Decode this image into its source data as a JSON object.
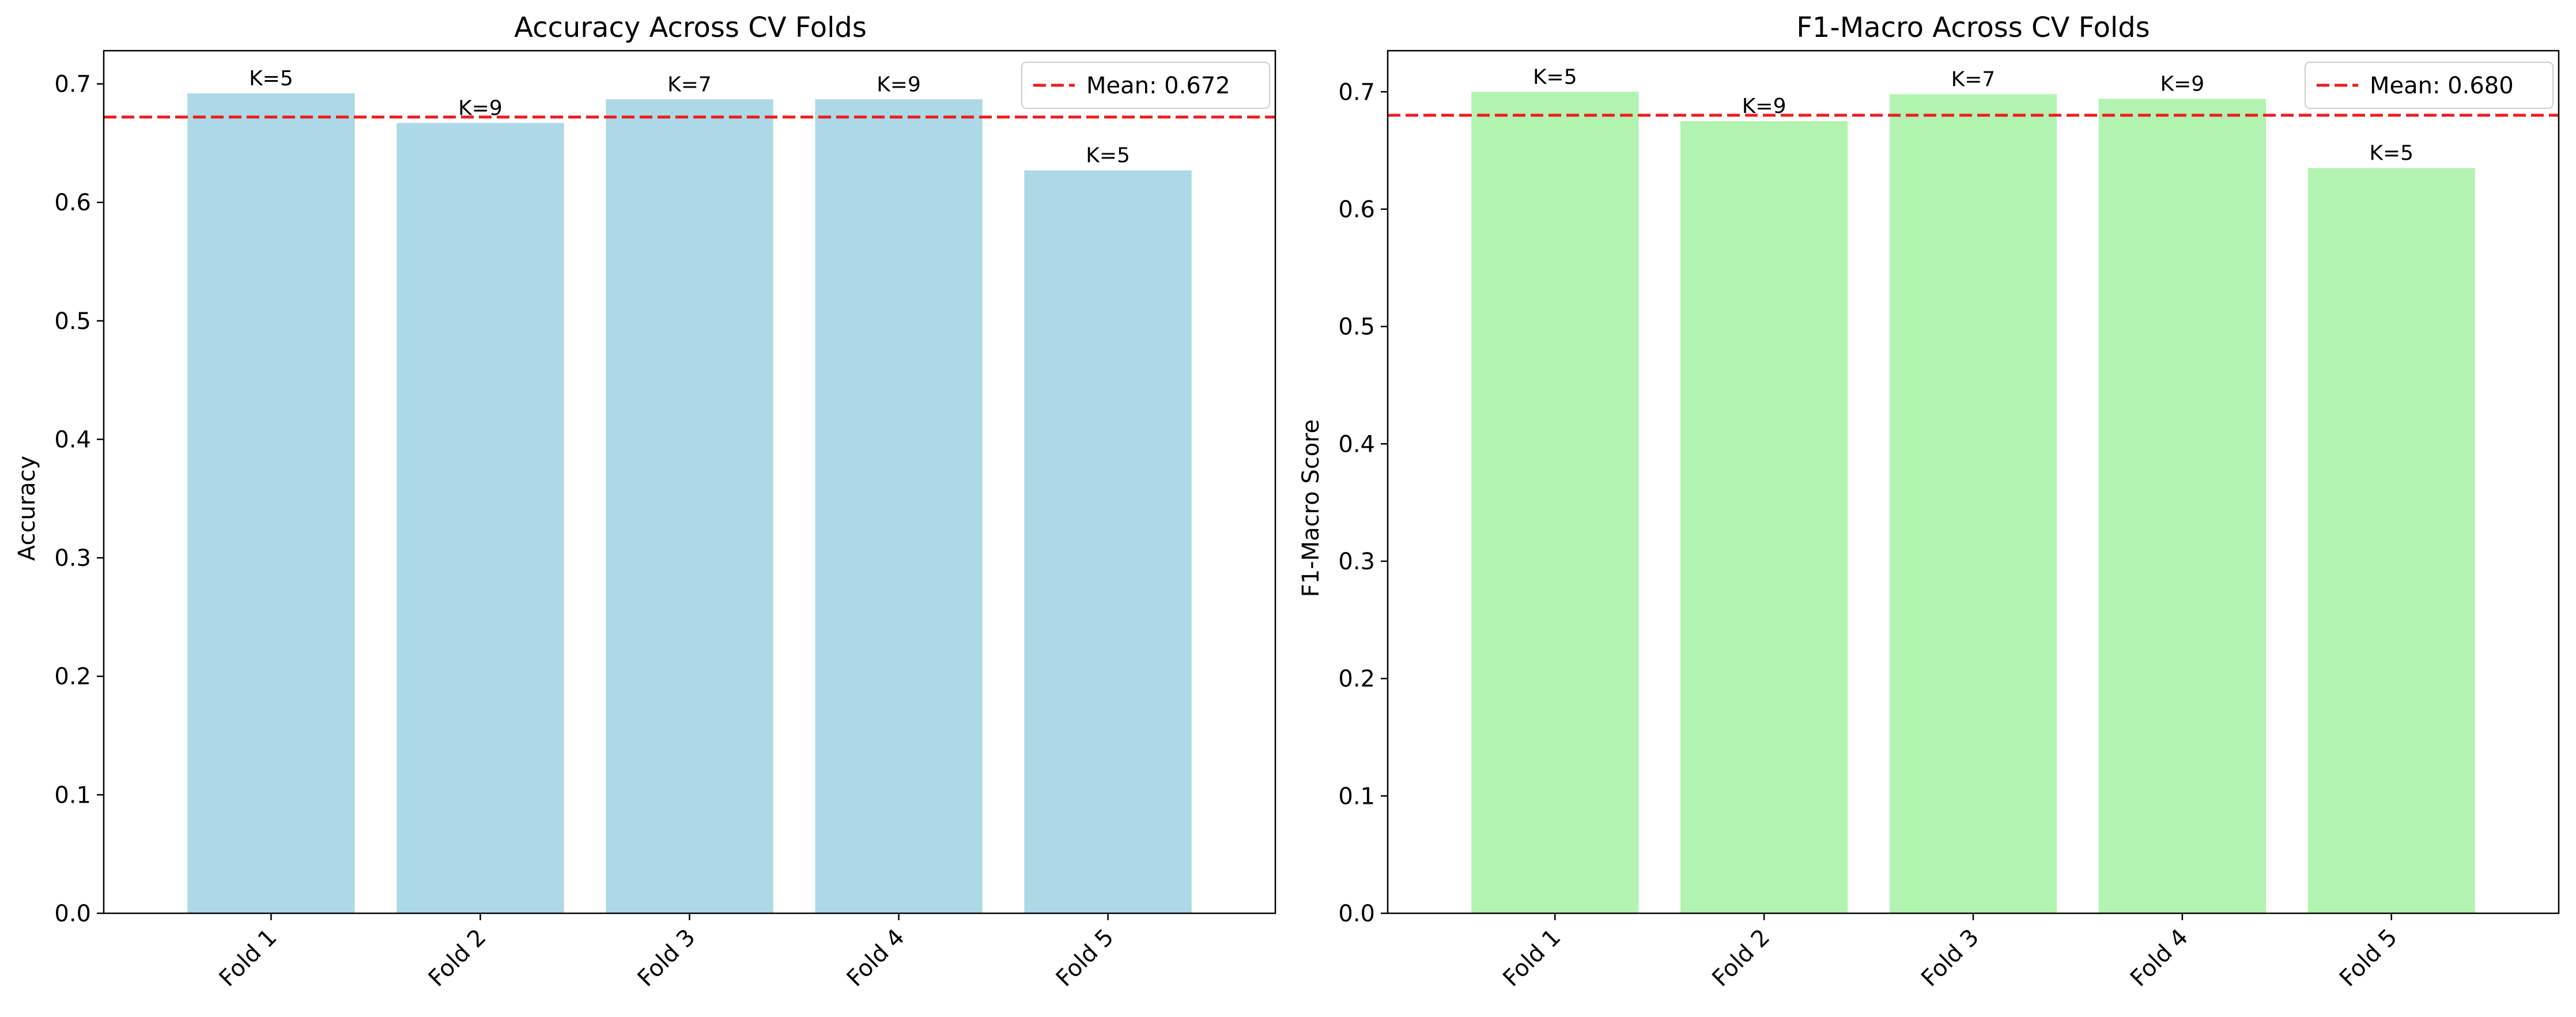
{
  "colors": {
    "accuracy_bars": "#add8e6",
    "f1_bars": "#b3f3b1",
    "mean_line": "#ee1c1c"
  },
  "chart_data": [
    {
      "type": "bar",
      "title": "Accuracy Across CV Folds",
      "xlabel": "",
      "ylabel": "Accuracy",
      "categories": [
        "Fold 1",
        "Fold 2",
        "Fold 3",
        "Fold 4",
        "Fold 5"
      ],
      "values": [
        0.692,
        0.667,
        0.687,
        0.687,
        0.627
      ],
      "bar_labels": [
        "K=5",
        "K=9",
        "K=7",
        "K=9",
        "K=5"
      ],
      "mean": 0.672,
      "mean_label": "Mean: 0.672",
      "ylim": [
        0,
        0.728
      ],
      "yticks": [
        0.0,
        0.1,
        0.2,
        0.3,
        0.4,
        0.5,
        0.6,
        0.7
      ],
      "ytick_labels": [
        "0.0",
        "0.1",
        "0.2",
        "0.3",
        "0.4",
        "0.5",
        "0.6",
        "0.7"
      ],
      "bar_color": "#add8e6",
      "grid": false,
      "legend_position": "top-right"
    },
    {
      "type": "bar",
      "title": "F1-Macro Across CV Folds",
      "xlabel": "",
      "ylabel": "F1-Macro Score",
      "categories": [
        "Fold 1",
        "Fold 2",
        "Fold 3",
        "Fold 4",
        "Fold 5"
      ],
      "values": [
        0.7,
        0.675,
        0.698,
        0.694,
        0.635
      ],
      "bar_labels": [
        "K=5",
        "K=9",
        "K=7",
        "K=9",
        "K=5"
      ],
      "mean": 0.68,
      "mean_label": "Mean: 0.680",
      "ylim": [
        0,
        0.735
      ],
      "yticks": [
        0.0,
        0.1,
        0.2,
        0.3,
        0.4,
        0.5,
        0.6,
        0.7
      ],
      "ytick_labels": [
        "0.0",
        "0.1",
        "0.2",
        "0.3",
        "0.4",
        "0.5",
        "0.6",
        "0.7"
      ],
      "bar_color": "#b3f3b1",
      "grid": false,
      "legend_position": "top-right"
    }
  ]
}
